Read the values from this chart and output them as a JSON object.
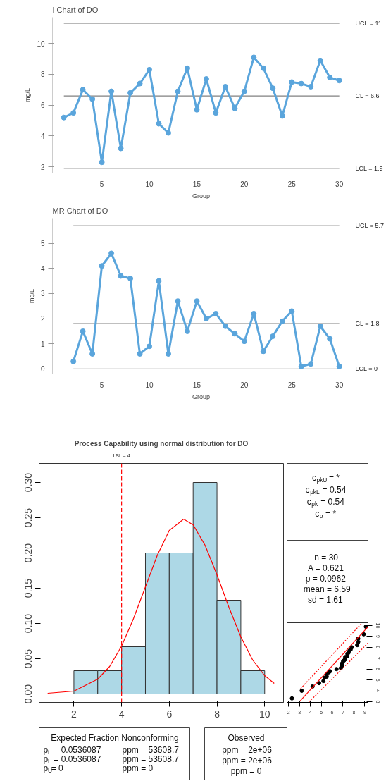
{
  "chart_data": [
    {
      "type": "line",
      "title": "I Chart of DO",
      "xlabel": "Group",
      "ylabel": "mg/L",
      "x": [
        1,
        2,
        3,
        4,
        5,
        6,
        7,
        8,
        9,
        10,
        11,
        12,
        13,
        14,
        15,
        16,
        17,
        18,
        19,
        20,
        21,
        22,
        23,
        24,
        25,
        26,
        27,
        28,
        29,
        30
      ],
      "series": [
        {
          "color": "#5aa5dc",
          "values": [
            5.2,
            5.5,
            7.0,
            6.4,
            2.3,
            6.9,
            3.2,
            6.8,
            7.4,
            8.3,
            4.8,
            4.2,
            6.9,
            8.4,
            5.7,
            7.7,
            5.5,
            7.2,
            5.8,
            6.9,
            9.1,
            8.4,
            7.1,
            5.3,
            7.5,
            7.4,
            7.2,
            8.9,
            7.8,
            7.6
          ]
        }
      ],
      "marker": "circle",
      "xlim": [
        -0.2,
        31.1
      ],
      "ylim": [
        1.6,
        11.7
      ],
      "xticks": [
        5,
        10,
        15,
        20,
        25,
        30
      ],
      "yticks": [
        2,
        4,
        6,
        8,
        10
      ],
      "ref_lines": [
        {
          "axis": "y",
          "value": 11.3,
          "label": "UCL = 11",
          "color": "#a0a0a0"
        },
        {
          "axis": "y",
          "value": 6.6,
          "label": "CL = 6.6",
          "color": "#808080"
        },
        {
          "axis": "y",
          "value": 1.9,
          "label": "LCL = 1.9",
          "color": "#a0a0a0"
        }
      ]
    },
    {
      "type": "line",
      "title": "MR Chart of DO",
      "xlabel": "Group",
      "ylabel": "mg/L",
      "x": [
        2,
        3,
        4,
        5,
        6,
        7,
        8,
        9,
        10,
        11,
        12,
        13,
        14,
        15,
        16,
        17,
        18,
        19,
        20,
        21,
        22,
        23,
        24,
        25,
        26,
        27,
        28,
        29,
        30
      ],
      "series": [
        {
          "color": "#5aa5dc",
          "values": [
            0.3,
            1.5,
            0.6,
            4.1,
            4.6,
            3.7,
            3.6,
            0.6,
            0.9,
            3.5,
            0.6,
            2.7,
            1.5,
            2.7,
            2.0,
            2.2,
            1.7,
            1.4,
            1.1,
            2.2,
            0.7,
            1.3,
            1.9,
            2.3,
            0.1,
            0.2,
            1.7,
            1.2,
            0.1
          ]
        }
      ],
      "marker": "circle",
      "xlim": [
        -0.2,
        31.1
      ],
      "ylim": [
        -0.2,
        6.0
      ],
      "xticks": [
        5,
        10,
        15,
        20,
        25,
        30
      ],
      "yticks": [
        0,
        1,
        2,
        3,
        4,
        5
      ],
      "ref_lines": [
        {
          "axis": "y",
          "value": 5.7,
          "label": "UCL = 5.7",
          "color": "#a0a0a0"
        },
        {
          "axis": "y",
          "value": 1.8,
          "label": "CL = 1.8",
          "color": "#808080"
        },
        {
          "axis": "y",
          "value": 0,
          "label": "LCL = 0",
          "color": "#a0a0a0"
        }
      ]
    },
    {
      "type": "histogram",
      "title": "Process Capability using normal distribution for DO",
      "series": [
        {
          "type": "histogram",
          "color": "#add8e6",
          "bins": [
            2,
            3,
            4,
            5,
            6,
            7,
            8,
            9,
            10
          ],
          "values": [
            0.033,
            0.033,
            0.067,
            0.2,
            0.2,
            0.3,
            0.133,
            0.033
          ]
        },
        {
          "type": "line",
          "color": "#ff0000",
          "x": [
            0.9,
            2,
            3,
            3.5,
            4,
            4.5,
            5,
            5.5,
            6,
            6.6,
            7,
            7.5,
            8,
            8.5,
            9,
            9.5,
            10,
            10.4
          ],
          "values": [
            0.001,
            0.004,
            0.021,
            0.039,
            0.068,
            0.107,
            0.152,
            0.197,
            0.232,
            0.248,
            0.24,
            0.211,
            0.169,
            0.123,
            0.081,
            0.048,
            0.026,
            0.015
          ]
        }
      ],
      "xlim": [
        0.54,
        10.79
      ],
      "ylim": [
        -0.012,
        0.327
      ],
      "xticks": [
        2,
        4,
        6,
        8,
        10
      ],
      "yticks": [
        {
          "value": 0,
          "label": "0.00"
        },
        {
          "value": 0.05,
          "label": "0.05"
        },
        {
          "value": 0.1,
          "label": "0.10"
        },
        {
          "value": 0.15,
          "label": "0.15"
        },
        {
          "value": 0.2,
          "label": "0.20"
        },
        {
          "value": 0.25,
          "label": "0.25"
        },
        {
          "value": 0.3,
          "label": "0.30"
        }
      ],
      "ref_lines": [
        {
          "axis": "x",
          "value": 4,
          "label": "LSL = 4",
          "color": "#ff0000",
          "line_style": "dashed"
        },
        {
          "axis": "y",
          "value": 0,
          "label": null,
          "color": "#bebebe"
        }
      ]
    },
    {
      "type": "other",
      "annotations": [
        "c$_{pkU}$ = *",
        "c$_{pkL}$ = 0.54",
        "c$_{pk}$ = 0.54",
        "c$_{p}$ = *"
      ]
    },
    {
      "type": "other",
      "annotations": [
        "n = 30",
        "A = 0.621",
        "p = 0.0962",
        "mean = 6.59",
        "sd = 1.61"
      ]
    },
    {
      "type": "scatter",
      "series": [
        {
          "type": "scatter",
          "color": "#000000",
          "x": [
            2.3,
            3.2,
            4.2,
            4.8,
            5.2,
            5.3,
            5.5,
            5.5,
            5.7,
            5.8,
            6.4,
            6.8,
            6.9,
            6.9,
            6.9,
            7.0,
            7.1,
            7.2,
            7.2,
            7.4,
            7.4,
            7.5,
            7.6,
            7.7,
            7.8,
            8.3,
            8.4,
            8.4,
            8.9,
            9.1
          ],
          "values": [
            3.3,
            4.0,
            4.4,
            4.7,
            4.9,
            5.2,
            5.3,
            5.5,
            5.7,
            5.8,
            6.0,
            6.1,
            6.3,
            6.4,
            6.5,
            6.7,
            6.8,
            6.9,
            7.1,
            7.2,
            7.4,
            7.5,
            7.7,
            7.8,
            8.0,
            8.2,
            8.5,
            8.8,
            9.2,
            9.9
          ]
        },
        {
          "type": "line",
          "color": "#ff0000",
          "line_style": "solid",
          "x": [
            3.0,
            9.3
          ],
          "values": [
            3.0,
            9.9
          ]
        },
        {
          "type": "line",
          "color": "#ff0000",
          "line_style": "dotted",
          "x": [
            3.1,
            8.7
          ],
          "values": [
            4.2,
            10.2
          ]
        },
        {
          "type": "line",
          "color": "#ff0000",
          "line_style": "dotted",
          "x": [
            3.9,
            9.3
          ],
          "values": [
            3.0,
            8.4
          ]
        }
      ],
      "xlim": [
        1.85,
        9.3
      ],
      "ylim": [
        2.93,
        10.26
      ],
      "xticks": [
        2,
        3,
        4,
        5,
        6,
        7,
        8,
        9
      ],
      "yticks": [
        3,
        4,
        5,
        6,
        7,
        8,
        9,
        10
      ]
    },
    {
      "type": "other",
      "title": "Expected Fraction Nonconforming",
      "annotations": [
        "p$_{t}$ = 0.0536087",
        "ppm = 53608.7",
        "p$_{L}$ = 0.0536087",
        "ppm = 53608.7",
        "p$_{U}$= 0",
        "ppm = 0"
      ]
    },
    {
      "type": "other",
      "title": "Observed",
      "annotations": [
        "ppm = 2e+06",
        "ppm = 2e+06",
        "ppm = 0"
      ]
    }
  ]
}
